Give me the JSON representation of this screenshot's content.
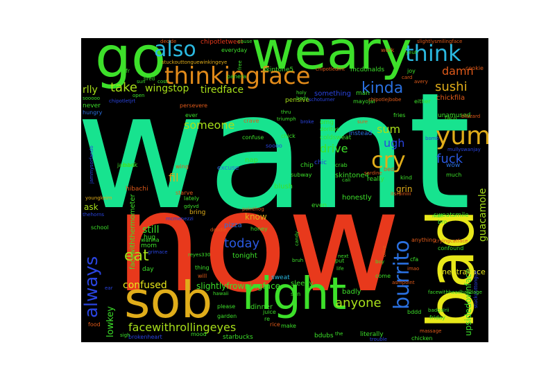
{
  "words": {
    "want": {
      "text": "want",
      "color": "#17e38f"
    },
    "now": {
      "text": "now",
      "color": "#e8391c"
    },
    "weary": {
      "text": "weary",
      "color": "#3de02a"
    },
    "go": {
      "text": "go",
      "color": "#3de02a"
    },
    "bad": {
      "text": "bad",
      "color": "#e8e81a"
    },
    "sob": {
      "text": "sob",
      "color": "#e0ad1a"
    },
    "right": {
      "text": "right",
      "color": "#3de02a"
    },
    "thinkingface": {
      "text": "thinkingface",
      "color": "#e08a1a"
    },
    "also": {
      "text": "also",
      "color": "#2ab8e0"
    },
    "think": {
      "text": "think",
      "color": "#2ab8e0"
    },
    "yum": {
      "text": "yum",
      "color": "#e0ad1a"
    },
    "cry": {
      "text": "cry",
      "color": "#e0ad1a"
    },
    "always": {
      "text": "always",
      "color": "#2a44e0"
    },
    "burrito": {
      "text": "burrito",
      "color": "#2a70e0"
    },
    "kinda": {
      "text": "kinda",
      "color": "#2a70e0"
    },
    "take": {
      "text": "take",
      "color": "#a8e01a"
    },
    "sushi": {
      "text": "sushi",
      "color": "#e0ad1a"
    },
    "damn": {
      "text": "damn",
      "color": "#e05a1a"
    },
    "fuck": {
      "text": "fuck",
      "color": "#2a58e0"
    },
    "eat": {
      "text": "eat",
      "color": "#a8e01a"
    },
    "today": {
      "text": "today",
      "color": "#2a58e0"
    },
    "anyone": {
      "text": "anyone",
      "color": "#a8e01a"
    },
    "facewithrollingeyes": {
      "text": "facewithrollingeyes",
      "color": "#a8e01a"
    },
    "confused": {
      "text": "confused",
      "color": "#e8e81a"
    },
    "guacamole": {
      "text": "guacamole",
      "color": "#a8e01a"
    },
    "someone": {
      "text": "someone",
      "color": "#a8e01a"
    },
    "wingstop": {
      "text": "wingstop",
      "color": "#a8e01a"
    },
    "tiredface": {
      "text": "tiredface",
      "color": "#a8e01a"
    },
    "rlly": {
      "text": "rlly",
      "color": "#a8e01a"
    },
    "ugh": {
      "text": "ugh",
      "color": "#2a44e0"
    },
    "sum": {
      "text": "sum",
      "color": "#a8e01a"
    },
    "drive": {
      "text": "drive",
      "color": "#3de02a"
    },
    "upsidedownface": {
      "text": "upsidedownface",
      "color": "#3de02a"
    },
    "lowkey": {
      "text": "lowkey",
      "color": "#3de02a"
    },
    "still": {
      "text": "still",
      "color": "#3de02a"
    },
    "know": {
      "text": "know",
      "color": "#e0ad1a"
    },
    "fil": {
      "text": "fil",
      "color": "#e0ad1a"
    },
    "grin": {
      "text": "grin",
      "color": "#e0ad1a"
    },
    "ask": {
      "text": "ask",
      "color": "#a8e01a"
    },
    "slightlyfrowningface": {
      "text": "slightlyfrowningface",
      "color": "#3de02a"
    },
    "facewiththermometer": {
      "text": "facewiththermometer",
      "color": "#3de02a"
    },
    "neutralface": {
      "text": "neutralface",
      "color": "#e8e81a"
    },
    "chickfila": {
      "text": "chickfila",
      "color": "#e05a1a"
    },
    "skintone5": {
      "text": "skintone5",
      "color": "#3de02a"
    },
    "mcdonalds": {
      "text": "mcdonalds",
      "color": "#3de02a"
    },
    "something": {
      "text": "something",
      "color": "#2a44e0"
    },
    "chipotletweet": {
      "text": "chipotletweet",
      "color": "#e8391c"
    },
    "pensive": {
      "text": "pensive",
      "color": "#a8e01a"
    },
    "coldsweat": {
      "text": "coldsweat",
      "color": "#3de02a"
    },
    "skintone4": {
      "text": "skintone4",
      "color": "#3de02a"
    },
    "honestly": {
      "text": "honestly",
      "color": "#3de02a"
    },
    "dinner": {
      "text": "dinner",
      "color": "#3de02a"
    },
    "sleepy": {
      "text": "sleepy",
      "color": "#3de02a"
    },
    "badly": {
      "text": "badly",
      "color": "#3de02a"
    },
    "bdubs": {
      "text": "bdubs",
      "color": "#3de02a"
    },
    "literally": {
      "text": "literally",
      "color": "#3de02a"
    },
    "pizza": {
      "text": "pizza",
      "color": "#2a70e0"
    },
    "tonight": {
      "text": "tonight",
      "color": "#3de02a"
    },
    "sweat": {
      "text": "sweat",
      "color": "#2ab8e0"
    },
    "blush": {
      "text": "blush",
      "color": "#3de02a"
    },
    "mom": {
      "text": "mom",
      "color": "#3de02a"
    },
    "day": {
      "text": "day",
      "color": "#3de02a"
    },
    "hug": {
      "text": "hug",
      "color": "#3de02a"
    },
    "bring": {
      "text": "bring",
      "color": "#e0ad1a"
    },
    "back": {
      "text": "back",
      "color": "#3de02a"
    },
    "wing": {
      "text": "wing",
      "color": "#e05a1a"
    },
    "nap": {
      "text": "nap",
      "color": "#3de02a"
    },
    "soooo": {
      "text": "soooo",
      "color": "#2a44e0"
    },
    "omg": {
      "text": "omg",
      "color": "#3de02a"
    },
    "doritos": {
      "text": "doritos",
      "color": "#3de02a"
    },
    "chic": {
      "text": "chic",
      "color": "#2a44e0"
    },
    "crab": {
      "text": "crab",
      "color": "#3de02a"
    },
    "subway": {
      "text": "subway",
      "color": "#3de02a"
    },
    "chip": {
      "text": "chip",
      "color": "#3de02a"
    },
    "excuse": {
      "text": "excuse",
      "color": "#2a70e0"
    },
    "even": {
      "text": "even",
      "color": "#3de02a"
    },
    "wow": {
      "text": "wow",
      "color": "#2a70e0"
    },
    "much": {
      "text": "much",
      "color": "#3de02a"
    },
    "kind": {
      "text": "kind",
      "color": "#3de02a"
    },
    "bed": {
      "text": "bed",
      "color": "#e05a1a"
    },
    "really": {
      "text": "really",
      "color": "#3de02a"
    },
    "sweatsmile": {
      "text": "sweatsmile",
      "color": "#3de02a"
    },
    "unamused": {
      "text": "unamused",
      "color": "#3de02a"
    },
    "either": {
      "text": "either",
      "color": "#3de02a"
    },
    "fries": {
      "text": "fries",
      "color": "#3de02a"
    },
    "instead": {
      "text": "instead",
      "color": "#2a70e0"
    },
    "mayojai": {
      "text": "mayojai",
      "color": "#3de02a"
    },
    "man": {
      "text": "man",
      "color": "#3de02a"
    },
    "confuse": {
      "text": "confuse",
      "color": "#3de02a"
    },
    "chick": {
      "text": "chick",
      "color": "#3de02a"
    },
    "else": {
      "text": "else",
      "color": "#3de02a"
    },
    "lately": {
      "text": "lately",
      "color": "#3de02a"
    },
    "starve": {
      "text": "starve",
      "color": "#e05a1a"
    },
    "hibachi": {
      "text": "hibachi",
      "color": "#e05a1a"
    },
    "never": {
      "text": "never",
      "color": "#3de02a"
    },
    "hungry": {
      "text": "hungry",
      "color": "#2a70e0"
    },
    "fr": {
      "text": "fr",
      "color": "#3de02a"
    },
    "ever": {
      "text": "ever",
      "color": "#3de02a"
    },
    "persevere": {
      "text": "persevere",
      "color": "#e05a1a"
    },
    "taco": {
      "text": "taco",
      "color": "#3de02a"
    },
    "joy": {
      "text": "joy",
      "color": "#3de02a"
    },
    "work": {
      "text": "work",
      "color": "#e05a1a"
    },
    "cookie": {
      "text": "cookie",
      "color": "#e05a1a"
    },
    "everyday": {
      "text": "everyday",
      "color": "#3de02a"
    },
    "panera": {
      "text": "panera",
      "color": "#3de02a"
    },
    "chicken": {
      "text": "chicken",
      "color": "#3de02a"
    },
    "friday": {
      "text": "friday",
      "color": "#3de02a"
    },
    "starbucks": {
      "text": "starbucks",
      "color": "#3de02a"
    },
    "brokenheart": {
      "text": "brokenheart",
      "color": "#2a44e0"
    },
    "food": {
      "text": "food",
      "color": "#e05a1a"
    },
    "thing": {
      "text": "thing",
      "color": "#3de02a"
    },
    "will": {
      "text": "will",
      "color": "#e05a1a"
    },
    "please": {
      "text": "please",
      "color": "#3de02a"
    },
    "garden": {
      "text": "garden",
      "color": "#3de02a"
    },
    "juice": {
      "text": "juice",
      "color": "#3de02a"
    },
    "re": {
      "text": "re",
      "color": "#3de02a"
    },
    "rice": {
      "text": "rice",
      "color": "#e05a1a"
    },
    "make": {
      "text": "make",
      "color": "#3de02a"
    },
    "come": {
      "text": "come",
      "color": "#3de02a"
    },
    "put": {
      "text": "put",
      "color": "#3de02a"
    },
    "cfa": {
      "text": "cfa",
      "color": "#3de02a"
    },
    "confound": {
      "text": "confound",
      "color": "#3de02a"
    },
    "anything": {
      "text": "anything",
      "color": "#e05a1a"
    },
    "bro": {
      "text": "bro",
      "color": "#3de02a"
    },
    "wanna": {
      "text": "wanna",
      "color": "#3de02a"
    },
    "school": {
      "text": "school",
      "color": "#3de02a"
    },
    "mood": {
      "text": "mood",
      "color": "#3de02a"
    },
    "bddd": {
      "text": "bddd",
      "color": "#3de02a"
    },
    "jamba": {
      "text": "jamba",
      "color": "#3de02a"
    },
    "son": {
      "text": "son",
      "color": "#3de02a"
    },
    "crave": {
      "text": "crave",
      "color": "#e05a1a"
    },
    "trouble": {
      "text": "trouble",
      "color": "#2a44e0"
    },
    "honey": {
      "text": "honey",
      "color": "#3de02a"
    },
    "tired": {
      "text": "tired",
      "color": "#3de02a"
    },
    "decide": {
      "text": "decide",
      "color": "#e05a1a"
    },
    "thru": {
      "text": "thru",
      "color": "#3de02a"
    },
    "triumph": {
      "text": "triumph",
      "color": "#3de02a"
    },
    "cost": {
      "text": "cost",
      "color": "#3de02a"
    },
    "cause": {
      "text": "cause",
      "color": "#3de02a"
    },
    "stuckouttonguewinkingeye": {
      "text": "stuckouttonguewinkingeye",
      "color": "#e0ad1a"
    },
    "slightlysmilingface": {
      "text": "slightlysmilingface",
      "color": "#e05a1a"
    },
    "chipotledmt": {
      "text": "chipotledmt",
      "color": "#e05a1a"
    },
    "sooooo": {
      "text": "sooooo",
      "color": "#3de02a"
    },
    "blizzard": {
      "text": "blizzard",
      "color": "#e05a1a"
    },
    "card": {
      "text": "card",
      "color": "#e05a1a"
    },
    "avery": {
      "text": "avery",
      "color": "#e05a1a"
    },
    "yeuh": {
      "text": "yeuh",
      "color": "#3de02a"
    },
    "chipotlejbobe": {
      "text": "chipotlejbobe",
      "color": "#e05a1a"
    },
    "schoturner": {
      "text": "schoturner",
      "color": "#2a44e0"
    },
    "holy": {
      "text": "holy",
      "color": "#3de02a"
    },
    "body": {
      "text": "body",
      "color": "#3de02a"
    },
    "free": {
      "text": "free",
      "color": "#3de02a"
    },
    "open": {
      "text": "open",
      "color": "#3de02a"
    },
    "sun": {
      "text": "sun",
      "color": "#3de02a"
    },
    "chipotletjrt": {
      "text": "chipotletjrt",
      "color": "#2a44e0"
    },
    "broke": {
      "text": "broke",
      "color": "#2a44e0"
    },
    "cali": {
      "text": "cali",
      "color": "#3de02a"
    },
    "bomb": {
      "text": "bomb",
      "color": "#2a44e0"
    },
    "sardine": {
      "text": "sardine",
      "color": "#e05a1a"
    },
    "sure": {
      "text": "sure",
      "color": "#e05a1a"
    },
    "itsrainiiii": {
      "text": "itsrainiiii",
      "color": "#e05a1a"
    },
    "mullyswanjay": {
      "text": "mullyswanjay",
      "color": "#2a44e0"
    },
    "youngkeim": {
      "text": "youngkeim",
      "color": "#e0ad1a"
    },
    "thehorns": {
      "text": "thehorns",
      "color": "#2a44e0"
    },
    "jammysorfando": {
      "text": "jammysorfando",
      "color": "#2a44e0"
    },
    "gdyvd": {
      "text": "gdyvd",
      "color": "#3de02a"
    },
    "mcmenezzi": {
      "text": "mcmenezzi",
      "color": "#2a44e0"
    },
    "hawaii": {
      "text": "hawaii",
      "color": "#3de02a"
    },
    "reyes330": {
      "text": "reyes330",
      "color": "#3de02a"
    },
    "grimace": {
      "text": "grimace",
      "color": "#2a44e0"
    },
    "olive": {
      "text": "olive",
      "color": "#e05a1a"
    },
    "next": {
      "text": "next",
      "color": "#3de02a"
    },
    "life": {
      "text": "life",
      "color": "#3de02a"
    },
    "buy": {
      "text": "buy",
      "color": "#3de02a"
    },
    "imao": {
      "text": "imao",
      "color": "#e05a1a"
    },
    "cryingcatface": {
      "text": "cryingcatface",
      "color": "#e05a1a"
    },
    "stuckouttongue": {
      "text": "stuckouttongue",
      "color": "#2a44e0"
    },
    "facewithheadbandage": {
      "text": "facewithheadbandage",
      "color": "#3de02a"
    },
    "badgalrii": {
      "text": "badgalrii",
      "color": "#3de02a"
    },
    "massage": {
      "text": "massage",
      "color": "#e05a1a"
    },
    "sigh": {
      "text": "sigh",
      "color": "#3de02a"
    },
    "the": {
      "text": "the",
      "color": "#3de02a"
    },
    "doodle": {
      "text": "doodle",
      "color": "#e05a1a"
    },
    "mail": {
      "text": "mail",
      "color": "#3de02a"
    },
    "bruh": {
      "text": "bruh",
      "color": "#3de02a"
    },
    "candy": {
      "text": "candy",
      "color": "#3de02a"
    },
    "pointfrog": {
      "text": "pointfrog",
      "color": "#e05a1a"
    },
    "asmpoint": {
      "text": "asmpoint",
      "color": "#e05a1a"
    },
    "ear": {
      "text": "ear",
      "color": "#2a44e0"
    }
  }
}
